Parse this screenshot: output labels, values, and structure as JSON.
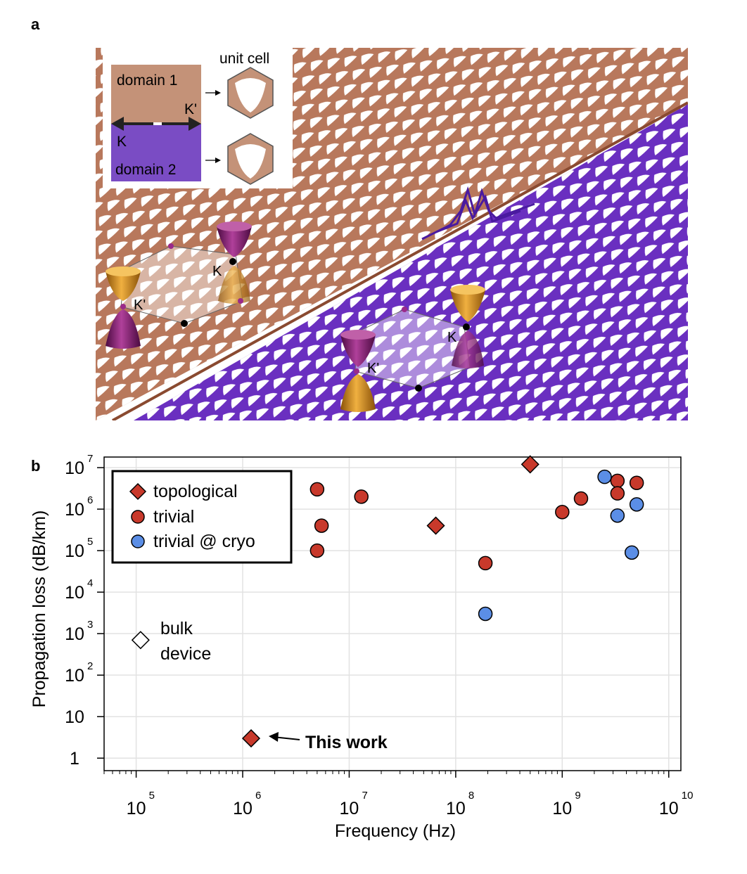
{
  "panel_a": {
    "label": "a",
    "inset": {
      "unit_cell_label": "unit cell",
      "domain1_label": "domain 1",
      "domain2_label": "domain 2",
      "k_label": "K",
      "kprime_label": "K'"
    },
    "bz_left": {
      "k_label": "K",
      "kprime_label": "K'"
    },
    "bz_right": {
      "k_label": "K",
      "kprime_label": "K'"
    },
    "colors": {
      "domain1": "#b8785c",
      "domain2": "#6a2fc0",
      "cone_orange": "#d99018",
      "cone_purple": "#7a1a6a"
    }
  },
  "panel_b": {
    "label": "b"
  },
  "chart_data": {
    "type": "scatter",
    "xlabel": "Frequency (Hz)",
    "ylabel": "Propagation loss (dB/km)",
    "xscale": "log",
    "yscale": "log",
    "xlim": [
      50000,
      13000000000
    ],
    "ylim": [
      0.5,
      18000000
    ],
    "x_ticks": [
      {
        "value": 100000,
        "base": "10",
        "exp": "5"
      },
      {
        "value": 1000000,
        "base": "10",
        "exp": "6"
      },
      {
        "value": 10000000,
        "base": "10",
        "exp": "7"
      },
      {
        "value": 100000000,
        "base": "10",
        "exp": "8"
      },
      {
        "value": 1000000000,
        "base": "10",
        "exp": "9"
      },
      {
        "value": 10000000000,
        "base": "10",
        "exp": "10"
      }
    ],
    "y_ticks": [
      {
        "value": 1,
        "base": "1",
        "exp": ""
      },
      {
        "value": 10,
        "base": "10",
        "exp": ""
      },
      {
        "value": 100,
        "base": "10",
        "exp": "2"
      },
      {
        "value": 1000,
        "base": "10",
        "exp": "3"
      },
      {
        "value": 10000,
        "base": "10",
        "exp": "4"
      },
      {
        "value": 100000,
        "base": "10",
        "exp": "5"
      },
      {
        "value": 1000000,
        "base": "10",
        "exp": "6"
      },
      {
        "value": 10000000,
        "base": "10",
        "exp": "7"
      }
    ],
    "grid": true,
    "legend_position": "top-left",
    "series": [
      {
        "name": "topological",
        "marker": "diamond",
        "color": "#c8392b",
        "points": [
          [
            65000000,
            400000
          ],
          [
            500000000,
            12000000
          ],
          [
            1200000,
            3
          ]
        ]
      },
      {
        "name": "trivial",
        "marker": "circle",
        "color": "#c8392b",
        "points": [
          [
            5000000,
            3000000
          ],
          [
            5500000,
            400000
          ],
          [
            5000000,
            100000
          ],
          [
            13000000,
            2000000
          ],
          [
            190000000,
            50000
          ],
          [
            1000000000,
            850000
          ],
          [
            1500000000,
            1800000
          ],
          [
            3300000000,
            4800000
          ],
          [
            3300000000,
            2400000
          ],
          [
            5000000000,
            4300000
          ]
        ]
      },
      {
        "name": "trivial @ cryo",
        "marker": "circle",
        "color": "#5b8ee6",
        "points": [
          [
            2500000000,
            6000000
          ],
          [
            3300000000,
            700000
          ],
          [
            5000000000,
            1300000
          ],
          [
            4500000000,
            90000
          ],
          [
            190000000,
            3000
          ]
        ]
      },
      {
        "name": "bulk device",
        "marker": "diamond-open",
        "color": "#ffffff",
        "points": [
          [
            110000,
            700
          ]
        ]
      }
    ],
    "annotations": {
      "bulk_line1": "bulk",
      "bulk_line2": "device",
      "this_work": "This work"
    }
  }
}
